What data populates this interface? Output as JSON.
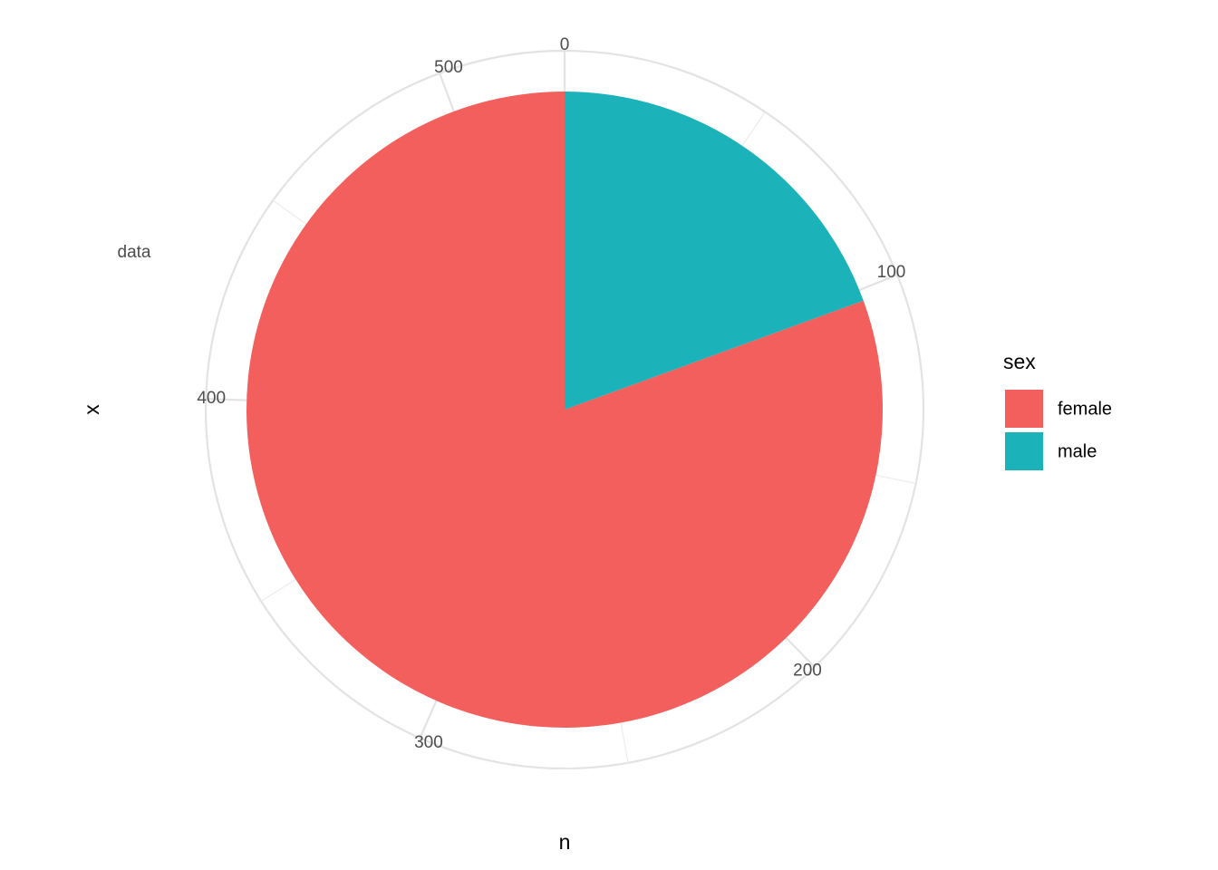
{
  "chart_data": {
    "type": "pie",
    "x_label": "x",
    "y_label": "n",
    "categories": [
      "data"
    ],
    "series": [
      {
        "name": "female",
        "color": "#F25F5C",
        "values": [
          427
        ]
      },
      {
        "name": "male",
        "color": "#1BB3B9",
        "values": [
          103
        ]
      }
    ],
    "ylim": [
      0,
      530
    ],
    "yticks": [
      0,
      100,
      200,
      300,
      400,
      500
    ],
    "yminorticks": [
      50,
      150,
      250,
      350,
      450
    ],
    "grid": true,
    "legend_title": "sex",
    "legend_position": "right"
  }
}
